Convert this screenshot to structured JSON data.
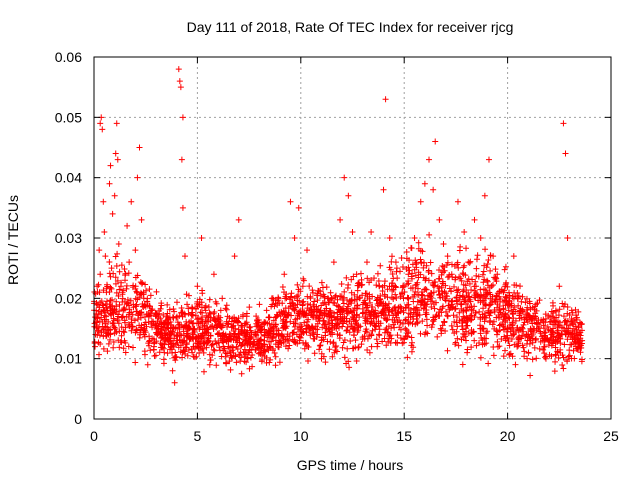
{
  "chart_data": {
    "type": "scatter",
    "title": "Day 111 of 2018, Rate Of TEC Index for receiver rjcg",
    "xlabel": "GPS time / hours",
    "ylabel": "ROTI / TECUs",
    "xlim": [
      0,
      25
    ],
    "ylim": [
      0,
      0.06
    ],
    "x_ticks": [
      "0",
      "5",
      "10",
      "15",
      "20",
      "25"
    ],
    "y_ticks": [
      "0",
      "0.01",
      "0.02",
      "0.03",
      "0.04",
      "0.05",
      "0.06"
    ],
    "grid": true,
    "marker": "+",
    "color": "#ff0000",
    "series": [
      {
        "name": "ROTI",
        "note": "dense cloud of points; representative sample",
        "points": [
          [
            0.05,
            0.012
          ],
          [
            0.1,
            0.016
          ],
          [
            0.15,
            0.022
          ],
          [
            0.2,
            0.019
          ],
          [
            0.25,
            0.028
          ],
          [
            0.3,
            0.024
          ],
          [
            0.3,
            0.049
          ],
          [
            0.35,
            0.05
          ],
          [
            0.4,
            0.048
          ],
          [
            0.45,
            0.036
          ],
          [
            0.5,
            0.031
          ],
          [
            0.55,
            0.027
          ],
          [
            0.6,
            0.021
          ],
          [
            0.65,
            0.018
          ],
          [
            0.7,
            0.014
          ],
          [
            0.75,
            0.039
          ],
          [
            0.8,
            0.042
          ],
          [
            0.85,
            0.025
          ],
          [
            0.9,
            0.034
          ],
          [
            1.0,
            0.037
          ],
          [
            1.05,
            0.044
          ],
          [
            1.1,
            0.049
          ],
          [
            1.15,
            0.043
          ],
          [
            1.2,
            0.029
          ],
          [
            1.3,
            0.022
          ],
          [
            1.4,
            0.017
          ],
          [
            1.5,
            0.023
          ],
          [
            1.6,
            0.032
          ],
          [
            1.7,
            0.026
          ],
          [
            1.8,
            0.036
          ],
          [
            1.9,
            0.019
          ],
          [
            2.0,
            0.028
          ],
          [
            2.1,
            0.04
          ],
          [
            2.2,
            0.045
          ],
          [
            2.3,
            0.033
          ],
          [
            2.4,
            0.021
          ],
          [
            2.5,
            0.016
          ],
          [
            2.6,
            0.009
          ],
          [
            2.7,
            0.013
          ],
          [
            2.8,
            0.018
          ],
          [
            2.9,
            0.012
          ],
          [
            3.0,
            0.017
          ],
          [
            3.2,
            0.014
          ],
          [
            3.4,
            0.011
          ],
          [
            3.6,
            0.015
          ],
          [
            3.8,
            0.008
          ],
          [
            3.9,
            0.006
          ],
          [
            4.0,
            0.013
          ],
          [
            4.1,
            0.058
          ],
          [
            4.15,
            0.056
          ],
          [
            4.2,
            0.055
          ],
          [
            4.25,
            0.043
          ],
          [
            4.3,
            0.05
          ],
          [
            4.3,
            0.035
          ],
          [
            4.4,
            0.027
          ],
          [
            4.5,
            0.019
          ],
          [
            4.6,
            0.015
          ],
          [
            4.8,
            0.012
          ],
          [
            5.0,
            0.022
          ],
          [
            5.2,
            0.03
          ],
          [
            5.4,
            0.018
          ],
          [
            5.6,
            0.009
          ],
          [
            5.8,
            0.024
          ],
          [
            6.0,
            0.014
          ],
          [
            6.2,
            0.02
          ],
          [
            6.5,
            0.012
          ],
          [
            6.8,
            0.027
          ],
          [
            7.0,
            0.033
          ],
          [
            7.2,
            0.017
          ],
          [
            7.5,
            0.011
          ],
          [
            7.8,
            0.014
          ],
          [
            8.0,
            0.019
          ],
          [
            8.3,
            0.016
          ],
          [
            8.6,
            0.02
          ],
          [
            9.0,
            0.013
          ],
          [
            9.2,
            0.024
          ],
          [
            9.5,
            0.036
          ],
          [
            9.7,
            0.03
          ],
          [
            9.9,
            0.035
          ],
          [
            10.1,
            0.022
          ],
          [
            10.3,
            0.028
          ],
          [
            10.5,
            0.018
          ],
          [
            10.8,
            0.014
          ],
          [
            11.0,
            0.01
          ],
          [
            11.3,
            0.02
          ],
          [
            11.6,
            0.026
          ],
          [
            11.9,
            0.033
          ],
          [
            12.1,
            0.04
          ],
          [
            12.3,
            0.037
          ],
          [
            12.5,
            0.031
          ],
          [
            12.7,
            0.024
          ],
          [
            13.0,
            0.019
          ],
          [
            13.2,
            0.026
          ],
          [
            13.4,
            0.031
          ],
          [
            13.6,
            0.018
          ],
          [
            13.8,
            0.022
          ],
          [
            14.0,
            0.038
          ],
          [
            14.1,
            0.053
          ],
          [
            14.3,
            0.03
          ],
          [
            14.6,
            0.026
          ],
          [
            14.9,
            0.021
          ],
          [
            15.2,
            0.024
          ],
          [
            15.5,
            0.03
          ],
          [
            15.8,
            0.036
          ],
          [
            16.0,
            0.039
          ],
          [
            16.2,
            0.043
          ],
          [
            16.4,
            0.038
          ],
          [
            16.5,
            0.046
          ],
          [
            16.7,
            0.033
          ],
          [
            16.9,
            0.029
          ],
          [
            17.1,
            0.027
          ],
          [
            17.3,
            0.024
          ],
          [
            17.6,
            0.036
          ],
          [
            17.9,
            0.031
          ],
          [
            18.1,
            0.026
          ],
          [
            18.4,
            0.033
          ],
          [
            18.7,
            0.03
          ],
          [
            18.9,
            0.037
          ],
          [
            19.1,
            0.043
          ],
          [
            19.3,
            0.027
          ],
          [
            19.5,
            0.024
          ],
          [
            19.8,
            0.021
          ],
          [
            20.0,
            0.019
          ],
          [
            20.3,
            0.027
          ],
          [
            20.6,
            0.018
          ],
          [
            21.0,
            0.014
          ],
          [
            21.4,
            0.016
          ],
          [
            21.8,
            0.012
          ],
          [
            22.2,
            0.015
          ],
          [
            22.5,
            0.022
          ],
          [
            22.7,
            0.049
          ],
          [
            22.8,
            0.044
          ],
          [
            22.9,
            0.03
          ],
          [
            23.1,
            0.018
          ],
          [
            23.3,
            0.012
          ],
          [
            23.5,
            0.016
          ],
          [
            23.6,
            0.013
          ]
        ],
        "envelope": {
          "x": [
            0,
            1,
            2,
            3,
            4,
            5,
            6,
            7,
            8,
            9,
            10,
            11,
            12,
            13,
            14,
            15,
            16,
            17,
            18,
            19,
            20,
            21,
            22,
            23,
            23.6
          ],
          "median": [
            0.016,
            0.019,
            0.018,
            0.015,
            0.014,
            0.015,
            0.014,
            0.013,
            0.013,
            0.016,
            0.017,
            0.016,
            0.017,
            0.017,
            0.018,
            0.019,
            0.021,
            0.019,
            0.019,
            0.019,
            0.017,
            0.015,
            0.014,
            0.014,
            0.014
          ],
          "spread": [
            0.006,
            0.008,
            0.007,
            0.005,
            0.005,
            0.006,
            0.005,
            0.005,
            0.004,
            0.006,
            0.006,
            0.006,
            0.007,
            0.007,
            0.007,
            0.008,
            0.009,
            0.008,
            0.008,
            0.008,
            0.007,
            0.006,
            0.005,
            0.005,
            0.004
          ]
        }
      }
    ]
  }
}
